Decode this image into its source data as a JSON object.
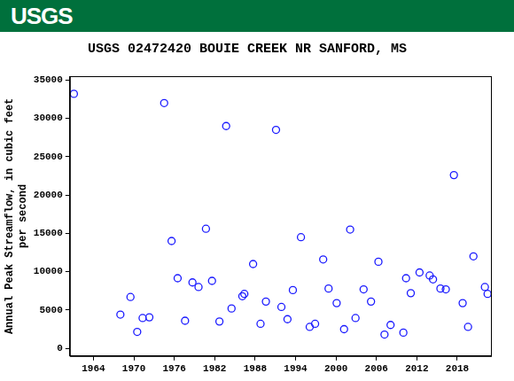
{
  "header": {
    "logo": "USGS"
  },
  "chart_data": {
    "type": "scatter",
    "title": "USGS 02472420 BOUIE CREEK NR SANFORD, MS",
    "y_label": [
      "Annual Peak Streamflow, in cubic feet",
      "per second"
    ],
    "x": [
      1961.1,
      1968.0,
      1969.5,
      1970.5,
      1971.3,
      1972.3,
      1974.5,
      1975.6,
      1976.5,
      1977.6,
      1978.7,
      1979.6,
      1980.7,
      1981.6,
      1982.7,
      1983.7,
      1984.5,
      1986.1,
      1986.4,
      1987.7,
      1988.8,
      1989.6,
      1991.1,
      1991.9,
      1992.8,
      1993.6,
      1994.8,
      1996.1,
      1996.9,
      1998.1,
      1998.9,
      2000.1,
      2001.2,
      2002.1,
      2002.9,
      2004.1,
      2005.2,
      2006.3,
      2007.2,
      2008.1,
      2010.0,
      2010.4,
      2011.1,
      2012.4,
      2013.9,
      2014.4,
      2015.5,
      2016.3,
      2017.5,
      2018.8,
      2019.6,
      2020.4,
      2022.1,
      2022.5
    ],
    "values": [
      33200,
      4400,
      6700,
      2150,
      3950,
      4050,
      32000,
      14000,
      9150,
      3600,
      8600,
      8000,
      15600,
      8800,
      3500,
      29000,
      5200,
      6800,
      7100,
      11000,
      3200,
      6100,
      28500,
      5400,
      3800,
      7600,
      14500,
      2800,
      3200,
      11600,
      7800,
      5900,
      2500,
      15500,
      3950,
      7700,
      6100,
      11300,
      1800,
      3050,
      2050,
      9150,
      7200,
      9900,
      9500,
      9000,
      7800,
      7700,
      22600,
      5900,
      2800,
      12000,
      8000,
      7100
    ],
    "color": "#1a1aff",
    "marker": "circle_open",
    "xlim": [
      1960.5,
      2023
    ],
    "xticks": [
      1964,
      1970,
      1976,
      1982,
      1988,
      1994,
      2000,
      2006,
      2012,
      2018
    ],
    "ylim": [
      -1000,
      35500
    ],
    "yticks": [
      0,
      5000,
      10000,
      15000,
      20000,
      25000,
      30000,
      35000
    ],
    "grid": false
  }
}
